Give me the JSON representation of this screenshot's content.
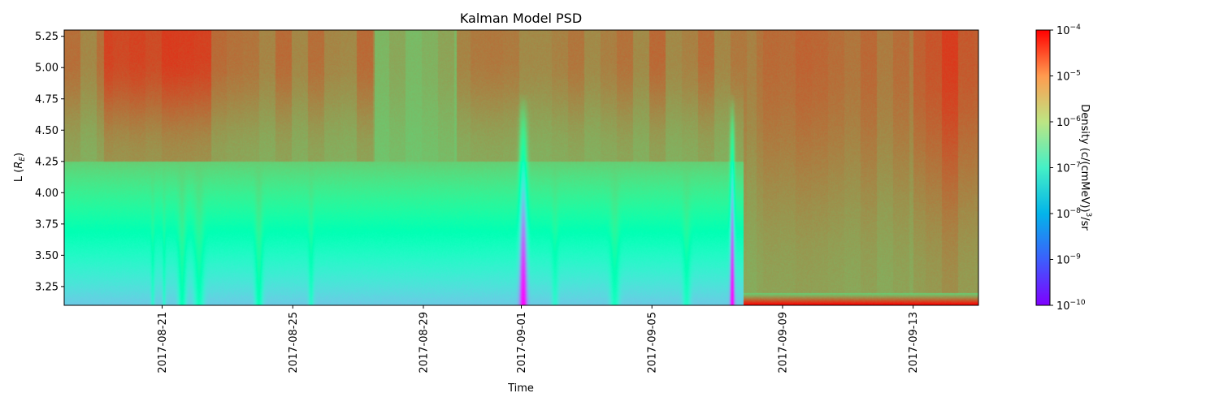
{
  "chart_data": {
    "type": "heatmap",
    "title": "Kalman Model PSD",
    "xlabel": "Time",
    "ylabel": "L ($R_E$)",
    "ylabel_main": "L (",
    "ylabel_sym": "R",
    "ylabel_sub": "E",
    "ylabel_close": ")",
    "x_range": [
      "2017-08-18",
      "2017-09-15"
    ],
    "x_ticks": [
      "2017-08-21",
      "2017-08-25",
      "2017-08-29",
      "2017-09-01",
      "2017-09-05",
      "2017-09-09",
      "2017-09-13"
    ],
    "y_range": [
      3.1,
      5.3
    ],
    "y_ticks": [
      "3.25",
      "3.50",
      "3.75",
      "4.00",
      "4.25",
      "4.50",
      "4.75",
      "5.00",
      "5.25"
    ],
    "colorscale": "rainbow",
    "color_range": [
      1e-10,
      0.0001
    ],
    "colorbar": {
      "scale": "log",
      "label": "Density (c/(cmMeV))^3/sr",
      "label_main": "Density (c/(cmMeV))",
      "label_sup": "3",
      "label_tail": "/sr",
      "ticks": [
        {
          "base": "10",
          "exp": "−4"
        },
        {
          "base": "10",
          "exp": "−5"
        },
        {
          "base": "10",
          "exp": "−6"
        },
        {
          "base": "10",
          "exp": "−7"
        },
        {
          "base": "10",
          "exp": "−8"
        },
        {
          "base": "10",
          "exp": "−9"
        },
        {
          "base": "10",
          "exp": "−10"
        }
      ]
    },
    "grid": false
  }
}
